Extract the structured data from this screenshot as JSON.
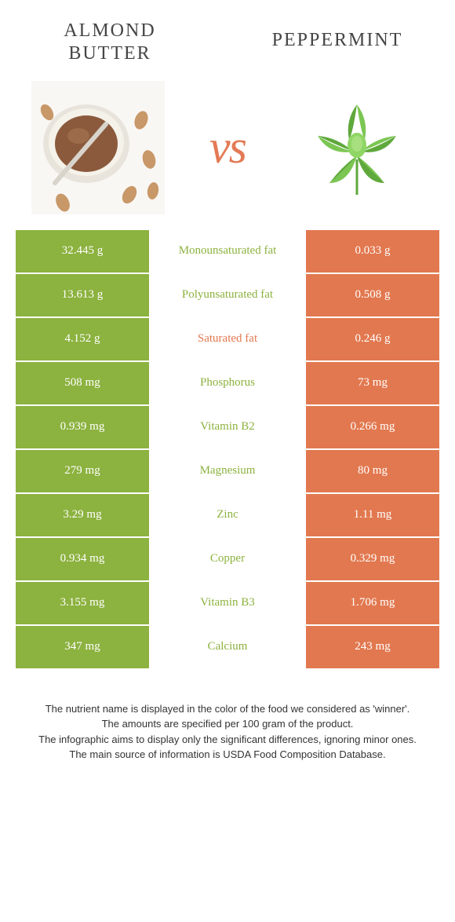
{
  "colors": {
    "left_bg": "#8cb23f",
    "right_bg": "#e2784f",
    "left_text": "#8cb23f",
    "right_text": "#e2784f",
    "title_text": "#444444",
    "footer_text": "#333333"
  },
  "header": {
    "left_title": "Almond Butter",
    "right_title": "Peppermint",
    "vs": "vs"
  },
  "table": {
    "rows": [
      {
        "left": "32.445 g",
        "label": "Monounsaturated fat",
        "right": "0.033 g",
        "winner": "left"
      },
      {
        "left": "13.613 g",
        "label": "Polyunsaturated fat",
        "right": "0.508 g",
        "winner": "left"
      },
      {
        "left": "4.152 g",
        "label": "Saturated fat",
        "right": "0.246 g",
        "winner": "right"
      },
      {
        "left": "508 mg",
        "label": "Phosphorus",
        "right": "73 mg",
        "winner": "left"
      },
      {
        "left": "0.939 mg",
        "label": "Vitamin B2",
        "right": "0.266 mg",
        "winner": "left"
      },
      {
        "left": "279 mg",
        "label": "Magnesium",
        "right": "80 mg",
        "winner": "left"
      },
      {
        "left": "3.29 mg",
        "label": "Zinc",
        "right": "1.11 mg",
        "winner": "left"
      },
      {
        "left": "0.934 mg",
        "label": "Copper",
        "right": "0.329 mg",
        "winner": "left"
      },
      {
        "left": "3.155 mg",
        "label": "Vitamin B3",
        "right": "1.706 mg",
        "winner": "left"
      },
      {
        "left": "347 mg",
        "label": "Calcium",
        "right": "243 mg",
        "winner": "left"
      }
    ]
  },
  "footer": {
    "line1": "The nutrient name is displayed in the color of the food we considered as 'winner'.",
    "line2": "The amounts are specified per 100 gram of the product.",
    "line3": "The infographic aims to display only the significant differences, ignoring minor ones.",
    "line4": "The main source of information is USDA Food Composition Database."
  }
}
